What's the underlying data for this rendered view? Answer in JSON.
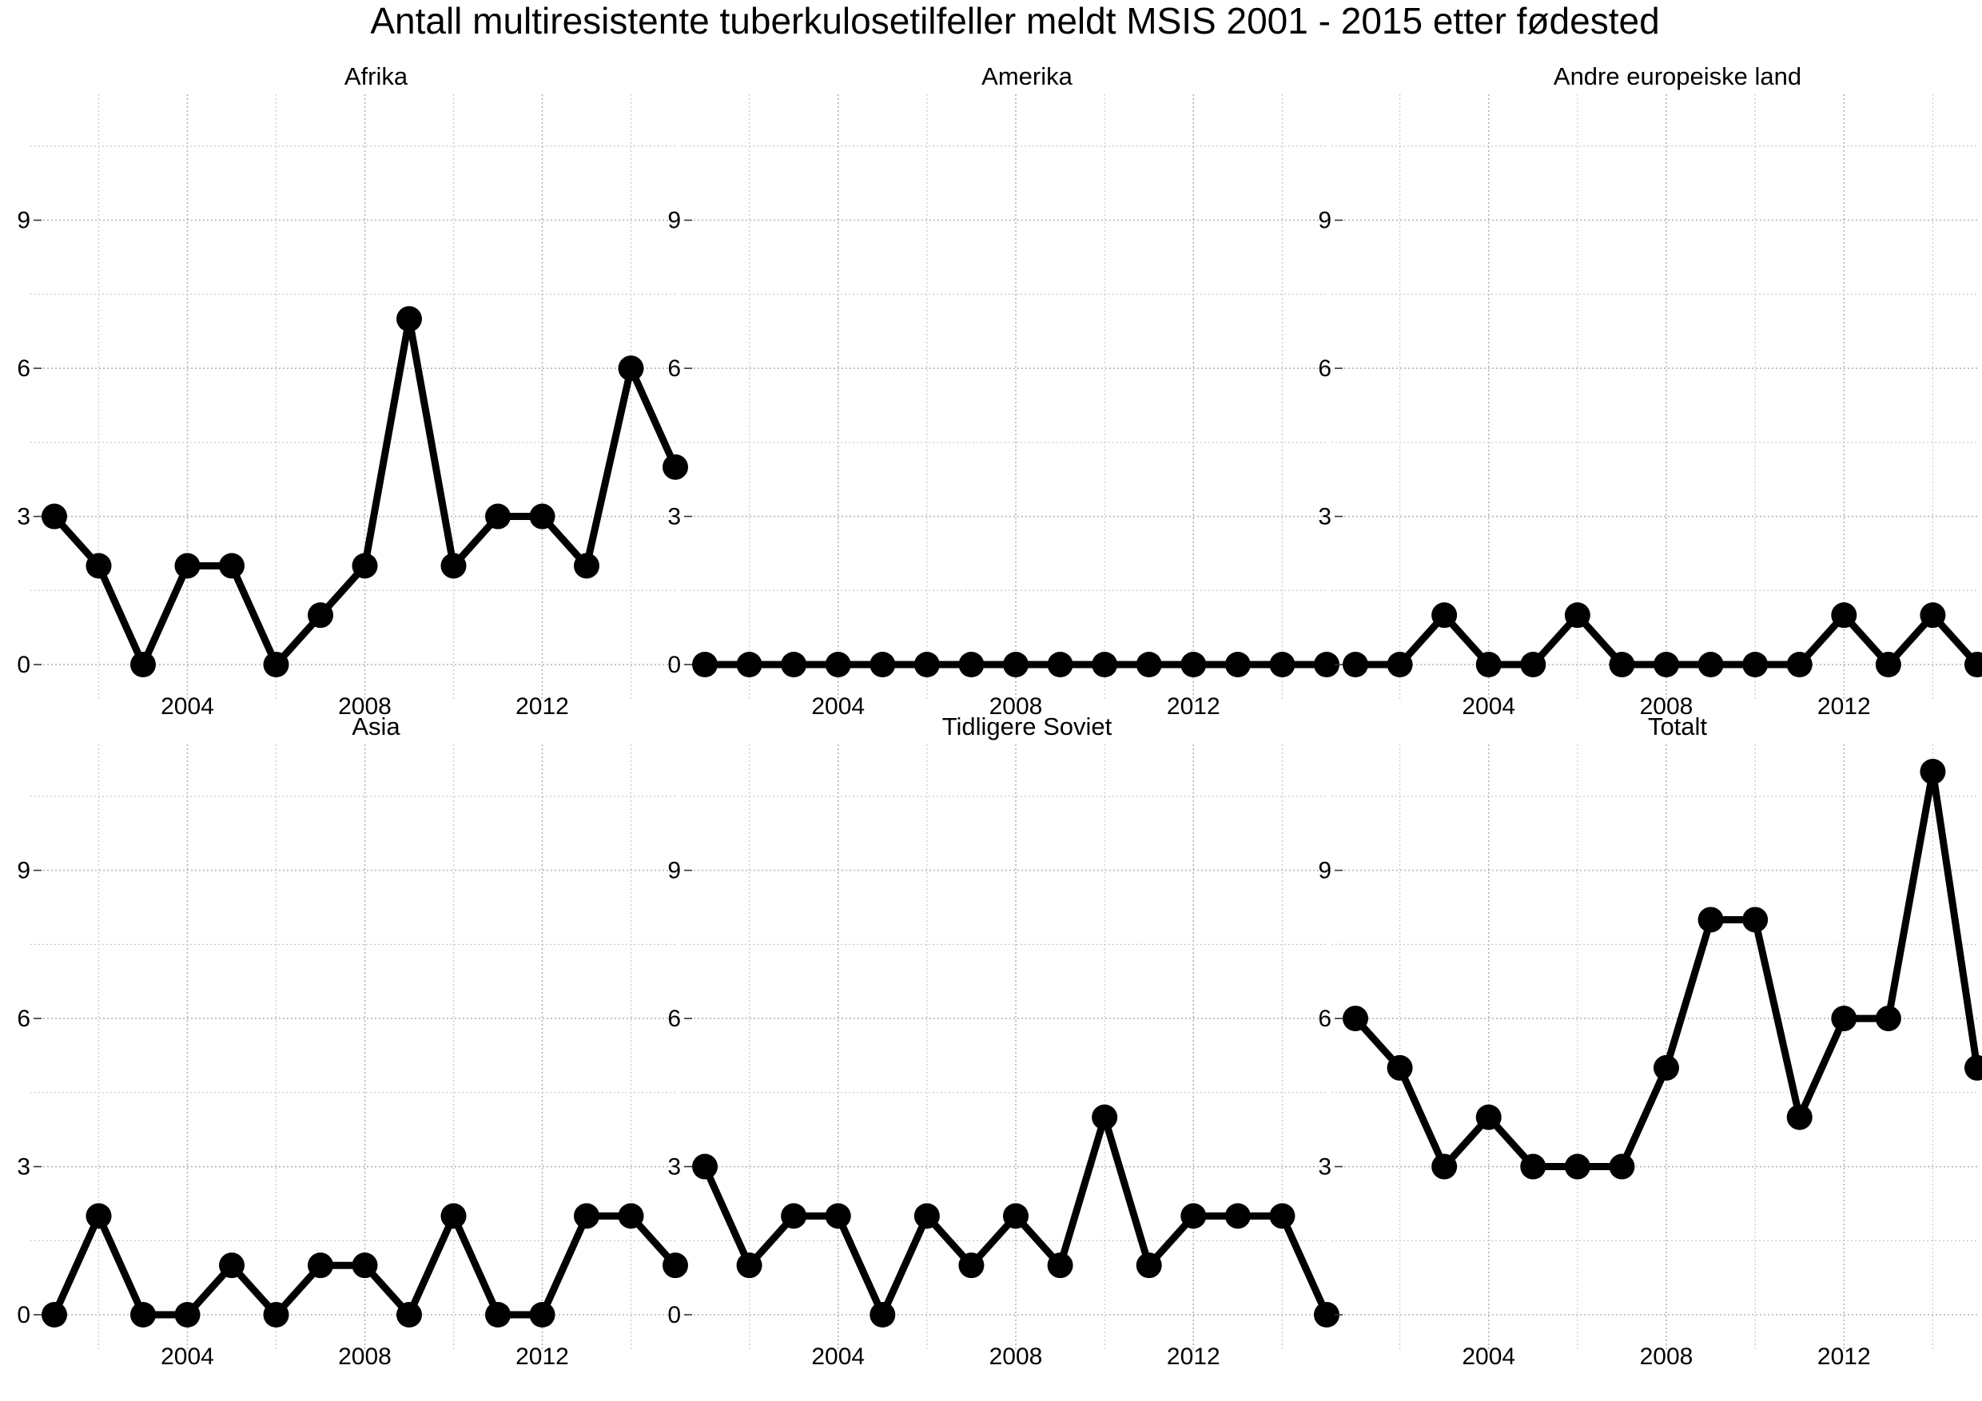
{
  "chart_data": {
    "type": "line",
    "title": "Antall multiresistente tuberkulosetilfeller meldt MSIS 2001 - 2015 etter fødested",
    "x": [
      2001,
      2002,
      2003,
      2004,
      2005,
      2006,
      2007,
      2008,
      2009,
      2010,
      2011,
      2012,
      2013,
      2014,
      2015
    ],
    "x_ticks": [
      2004,
      2008,
      2012
    ],
    "x_tick_labels": [
      "2004",
      "2008",
      "2012"
    ],
    "xlim": [
      2001,
      2015
    ],
    "y_ticks": [
      0,
      3,
      6,
      9
    ],
    "y_tick_labels": [
      "0",
      "3",
      "6",
      "9"
    ],
    "ylim": [
      0,
      11
    ],
    "grid": true,
    "facets": [
      {
        "title": "Afrika",
        "values": [
          3,
          2,
          0,
          2,
          2,
          0,
          1,
          2,
          7,
          2,
          3,
          3,
          2,
          6,
          4
        ]
      },
      {
        "title": "Amerika",
        "values": [
          0,
          0,
          0,
          0,
          0,
          0,
          0,
          0,
          0,
          0,
          0,
          0,
          0,
          0,
          0
        ]
      },
      {
        "title": "Andre europeiske land",
        "values": [
          0,
          0,
          1,
          0,
          0,
          1,
          0,
          0,
          0,
          0,
          0,
          1,
          0,
          1,
          0
        ]
      },
      {
        "title": "Asia",
        "values": [
          0,
          2,
          0,
          0,
          1,
          0,
          1,
          1,
          0,
          2,
          0,
          0,
          2,
          2,
          1
        ]
      },
      {
        "title": "Tidligere Soviet",
        "values": [
          3,
          1,
          2,
          2,
          0,
          2,
          1,
          2,
          1,
          4,
          1,
          2,
          2,
          2,
          0
        ]
      },
      {
        "title": "Totalt",
        "values": [
          6,
          5,
          3,
          4,
          3,
          3,
          3,
          5,
          8,
          8,
          4,
          6,
          6,
          11,
          5
        ]
      }
    ]
  }
}
